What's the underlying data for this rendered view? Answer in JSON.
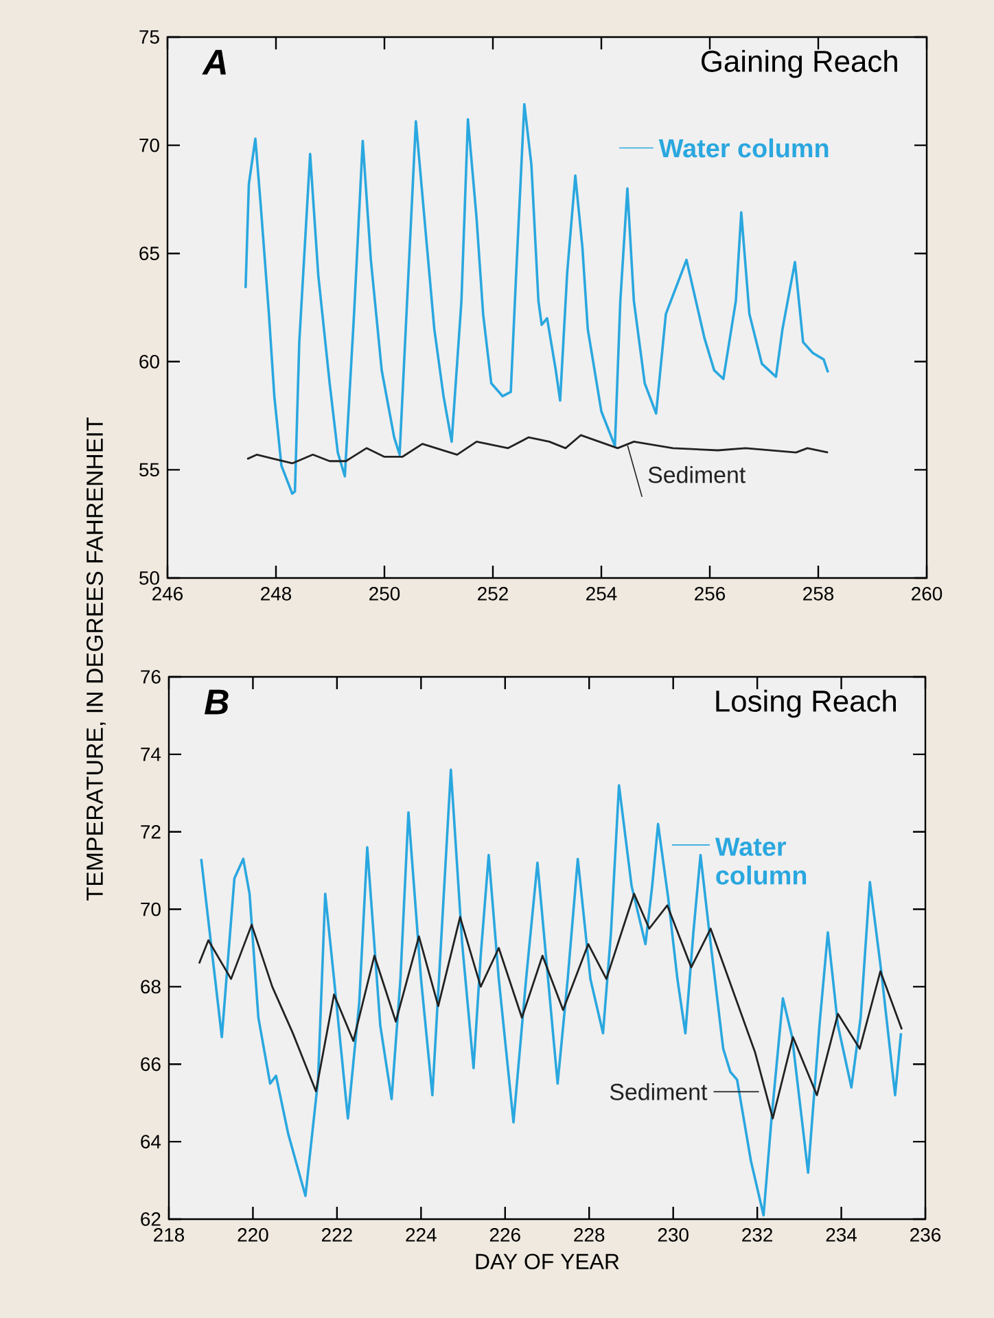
{
  "chart_data": [
    {
      "type": "line",
      "title": "Gaining Reach",
      "annotations": [
        "A"
      ],
      "ylabel": "TEMPERATURE, IN DEGREES FAHRENHEIT",
      "legend": "right",
      "xlim": [
        246,
        260
      ],
      "xticks": [
        246,
        248,
        250,
        252,
        254,
        256,
        258,
        260
      ],
      "ylim": [
        50,
        75
      ],
      "yticks": [
        50,
        55,
        60,
        65,
        70,
        75
      ],
      "grid": false,
      "line_style": "solid",
      "series": [
        {
          "name": "Water column",
          "color": "#2aa7df",
          "x": [
            247.44,
            247.5,
            247.62,
            247.72,
            247.87,
            247.97,
            248.1,
            248.3,
            248.35,
            248.43,
            248.63,
            248.78,
            248.99,
            249.14,
            249.27,
            249.44,
            249.6,
            249.75,
            249.95,
            250.18,
            250.28,
            250.43,
            250.58,
            250.76,
            250.92,
            251.09,
            251.24,
            251.42,
            251.54,
            251.7,
            251.82,
            251.97,
            252.18,
            252.33,
            252.43,
            252.58,
            252.71,
            252.84,
            252.9,
            253.0,
            253.16,
            253.24,
            253.37,
            253.52,
            253.65,
            253.75,
            254.0,
            254.25,
            254.35,
            254.48,
            254.6,
            254.8,
            255.01,
            255.19,
            255.57,
            255.9,
            256.08,
            256.25,
            256.48,
            256.58,
            256.73,
            256.96,
            257.22,
            257.34,
            257.57,
            257.72,
            257.9,
            258.1,
            258.18
          ],
          "values": [
            63.4,
            68.2,
            70.3,
            67.2,
            62.2,
            58.4,
            55.2,
            53.9,
            54.0,
            60.9,
            69.6,
            64.0,
            59.0,
            55.8,
            54.7,
            62.2,
            70.2,
            64.7,
            59.6,
            56.5,
            55.7,
            63.4,
            71.1,
            66.0,
            61.5,
            58.4,
            56.3,
            62.8,
            71.2,
            66.6,
            62.2,
            59.0,
            58.4,
            58.6,
            64.1,
            71.9,
            69.1,
            62.8,
            61.7,
            62.0,
            59.6,
            58.2,
            64.1,
            68.6,
            65.3,
            61.5,
            57.7,
            56.1,
            62.8,
            68.0,
            62.8,
            59.0,
            57.6,
            62.2,
            64.7,
            61.1,
            59.6,
            59.2,
            62.8,
            66.9,
            62.2,
            59.9,
            59.3,
            61.5,
            64.6,
            60.9,
            60.4,
            60.1,
            59.5
          ]
        },
        {
          "name": "Sediment",
          "color": "#222222",
          "x": [
            247.47,
            247.65,
            247.97,
            248.3,
            248.68,
            248.99,
            249.29,
            249.67,
            250.0,
            250.33,
            250.7,
            251.34,
            251.7,
            252.28,
            252.66,
            253.04,
            253.34,
            253.62,
            254.3,
            254.6,
            255.32,
            256.15,
            256.66,
            257.59,
            257.8,
            258.18
          ],
          "values": [
            55.5,
            55.7,
            55.5,
            55.3,
            55.7,
            55.4,
            55.4,
            56.0,
            55.6,
            55.6,
            56.2,
            55.7,
            56.3,
            56.0,
            56.5,
            56.3,
            56.0,
            56.6,
            56.0,
            56.3,
            56.0,
            55.9,
            56.0,
            55.8,
            56.0,
            55.8
          ]
        }
      ]
    },
    {
      "type": "line",
      "title": "Losing Reach",
      "annotations": [
        "B"
      ],
      "xlabel": "DAY OF YEAR",
      "legend": "right",
      "xlim": [
        218,
        236
      ],
      "xticks": [
        218,
        220,
        222,
        224,
        226,
        228,
        230,
        232,
        234,
        236
      ],
      "ylim": [
        62,
        76
      ],
      "yticks": [
        62,
        64,
        66,
        68,
        70,
        72,
        74,
        76
      ],
      "grid": false,
      "line_style": "solid",
      "series": [
        {
          "name": "Water column",
          "color": "#2aa7df",
          "x": [
            218.77,
            219.26,
            219.56,
            219.77,
            219.92,
            220.13,
            220.41,
            220.55,
            220.84,
            221.25,
            221.55,
            221.72,
            221.93,
            222.26,
            222.53,
            222.72,
            223.03,
            223.3,
            223.51,
            223.7,
            224.0,
            224.27,
            224.49,
            224.71,
            224.98,
            225.25,
            225.42,
            225.61,
            225.85,
            226.2,
            226.5,
            226.77,
            227.25,
            227.49,
            227.73,
            228.03,
            228.33,
            228.52,
            228.71,
            229.01,
            229.34,
            229.5,
            229.64,
            229.88,
            230.1,
            230.29,
            230.48,
            230.65,
            230.86,
            231.19,
            231.36,
            231.52,
            231.85,
            232.15,
            232.34,
            232.61,
            232.83,
            233.21,
            233.48,
            233.68,
            233.92,
            234.24,
            234.46,
            234.68,
            234.95,
            235.28,
            235.42
          ],
          "values": [
            71.3,
            66.7,
            70.8,
            71.3,
            70.4,
            67.2,
            65.5,
            65.7,
            64.2,
            62.6,
            65.6,
            70.4,
            68.2,
            64.6,
            67.6,
            71.6,
            67.0,
            65.1,
            68.2,
            72.5,
            68.2,
            65.2,
            69.4,
            73.6,
            69.1,
            65.9,
            68.8,
            71.4,
            68.2,
            64.5,
            68.2,
            71.2,
            65.5,
            68.2,
            71.3,
            68.2,
            66.8,
            69.4,
            73.2,
            70.6,
            69.1,
            70.6,
            72.2,
            70.3,
            68.2,
            66.8,
            69.4,
            71.4,
            69.4,
            66.4,
            65.8,
            65.6,
            63.5,
            62.1,
            64.6,
            67.7,
            66.7,
            63.2,
            67.0,
            69.4,
            67.0,
            65.4,
            67.2,
            70.7,
            68.4,
            65.2,
            66.8
          ]
        },
        {
          "name": "Sediment",
          "color": "#222222",
          "x": [
            218.72,
            218.94,
            219.48,
            219.97,
            220.46,
            220.95,
            221.5,
            221.93,
            222.39,
            222.89,
            223.4,
            223.95,
            224.41,
            224.93,
            225.42,
            225.85,
            226.4,
            226.89,
            227.38,
            227.98,
            228.41,
            229.07,
            229.43,
            229.86,
            230.43,
            230.89,
            231.52,
            231.95,
            232.37,
            232.85,
            233.42,
            233.92,
            234.44,
            234.93,
            235.44
          ],
          "values": [
            68.6,
            69.2,
            68.2,
            69.6,
            68.0,
            66.8,
            65.3,
            67.8,
            66.6,
            68.8,
            67.1,
            69.3,
            67.5,
            69.8,
            68.0,
            69.0,
            67.2,
            68.8,
            67.4,
            69.1,
            68.2,
            70.4,
            69.5,
            70.1,
            68.5,
            69.5,
            67.6,
            66.3,
            64.6,
            66.7,
            65.2,
            67.3,
            66.4,
            68.4,
            66.9
          ]
        }
      ]
    }
  ]
}
